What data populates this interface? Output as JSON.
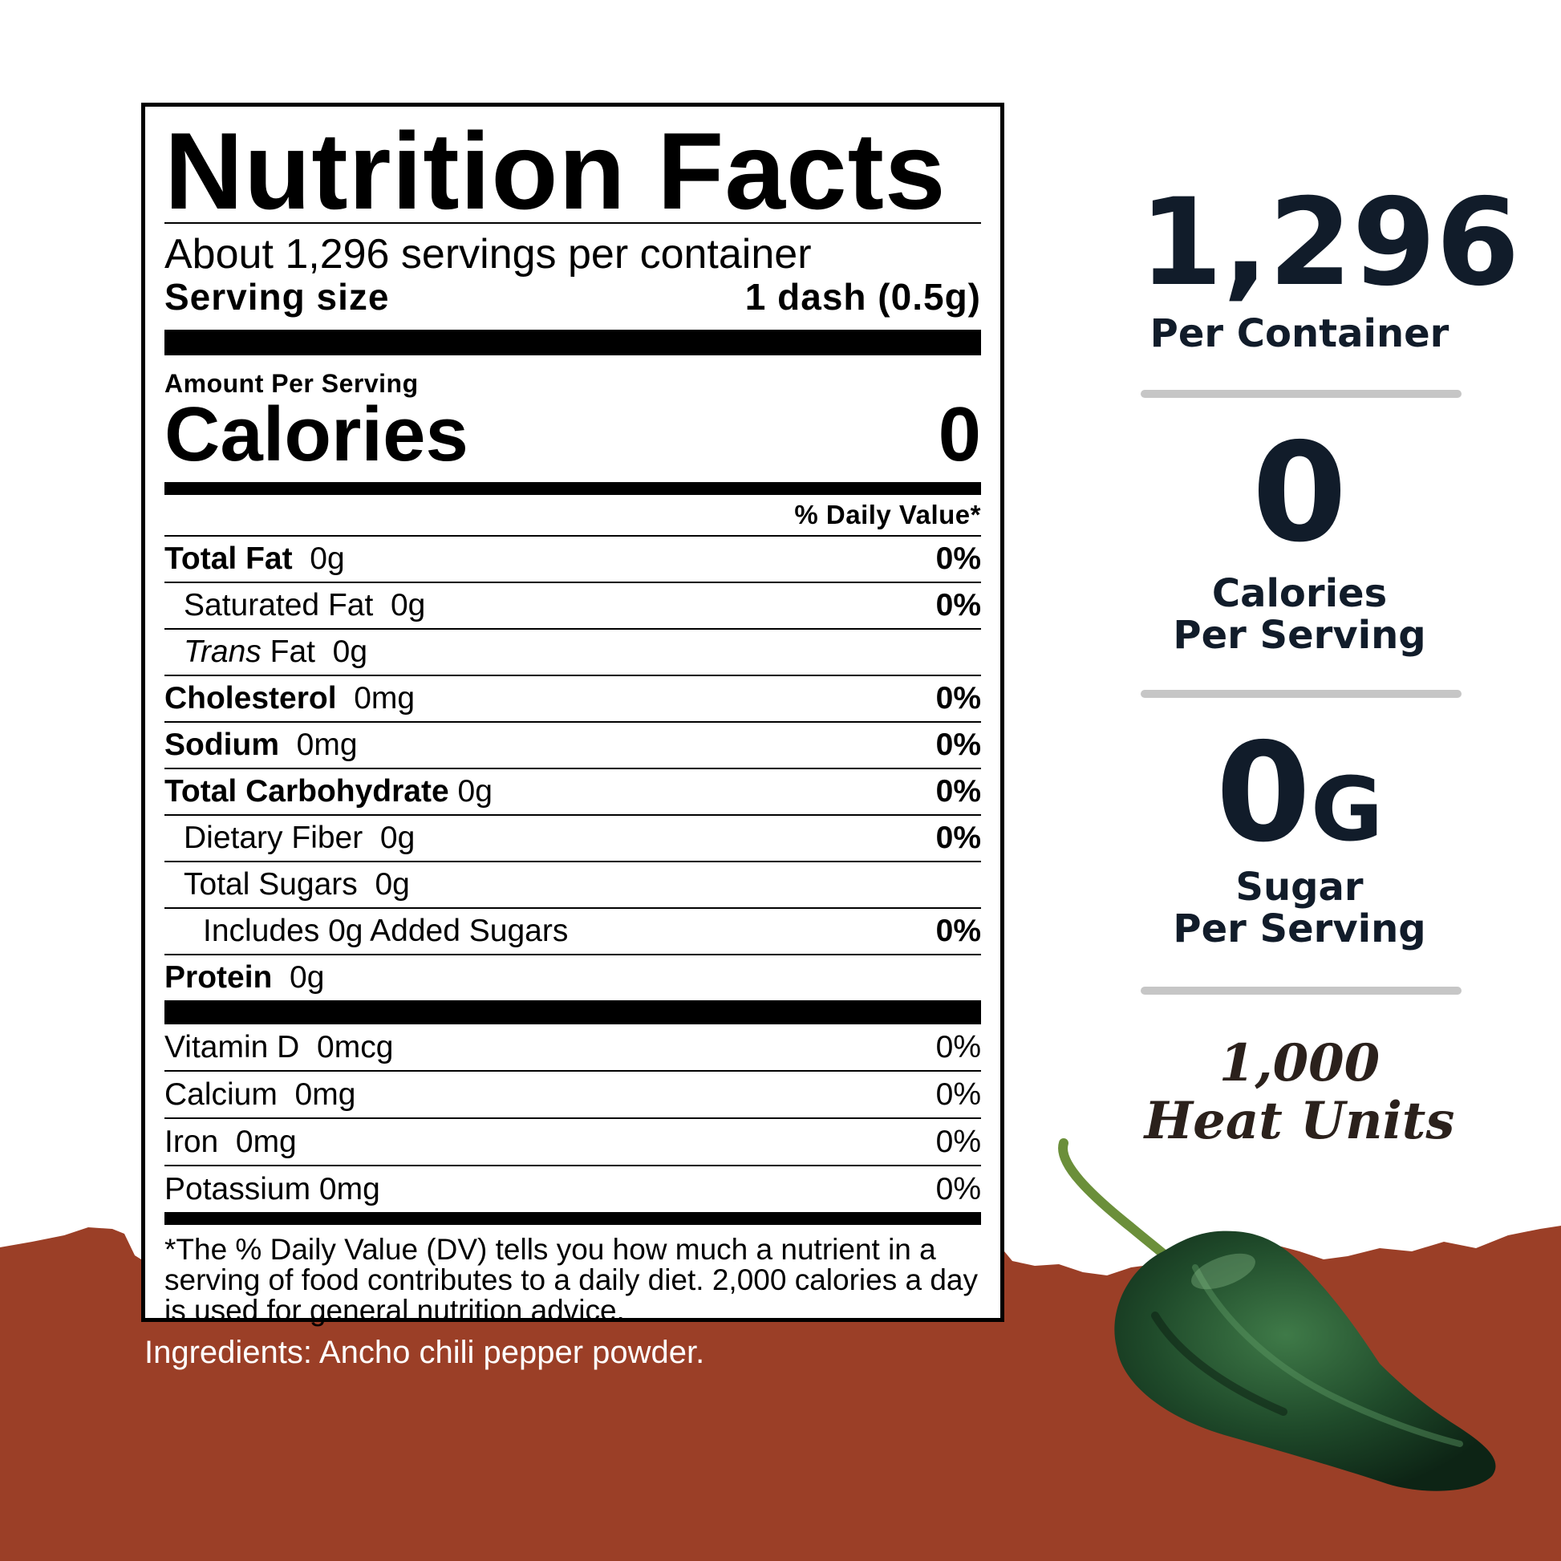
{
  "label": {
    "title": "Nutrition Facts",
    "servings_per_container": "About 1,296 servings per container",
    "serving_size_label": "Serving size",
    "serving_size_value": "1 dash (0.5g)",
    "amount_per_serving": "Amount Per Serving",
    "calories_label": "Calories",
    "calories_value": "0",
    "daily_value_header": "% Daily Value*",
    "nutrients": [
      {
        "name": "Total Fat",
        "amount": "0g",
        "dv": "0%"
      },
      {
        "name": "Saturated Fat",
        "amount": "0g",
        "dv": "0%"
      },
      {
        "name_italic": "Trans",
        "name": "Fat",
        "amount": "0g",
        "dv": ""
      },
      {
        "name": "Cholesterol",
        "amount": "0mg",
        "dv": "0%"
      },
      {
        "name": "Sodium",
        "amount": "0mg",
        "dv": "0%"
      },
      {
        "name": "Total Carbohydrate",
        "amount": "0g",
        "dv": "0%"
      },
      {
        "name": "Dietary Fiber",
        "amount": "0g",
        "dv": "0%"
      },
      {
        "name": "Total Sugars",
        "amount": "0g",
        "dv": ""
      },
      {
        "name": "Includes 0g Added Sugars",
        "amount": "",
        "dv": "0%"
      },
      {
        "name": "Protein",
        "amount": "0g",
        "dv": ""
      }
    ],
    "vitamins": [
      {
        "name": "Vitamin D",
        "amount": "0mcg",
        "dv": "0%"
      },
      {
        "name": "Calcium",
        "amount": "0mg",
        "dv": "0%"
      },
      {
        "name": "Iron",
        "amount": "0mg",
        "dv": "0%"
      },
      {
        "name": "Potassium",
        "amount": "0mg",
        "dv": "0%"
      }
    ],
    "footnote": "*The % Daily Value (DV) tells you how much a nutrient in a serving of food contributes to a daily diet. 2,000 calories a day is used for general nutrition advice."
  },
  "ingredients": "Ingredients: Ancho chili pepper powder.",
  "stats": {
    "servings_number": "1,296",
    "servings_label": "Per Container",
    "calories_number": "0",
    "calories_label_1": "Calories",
    "calories_label_2": "Per Serving",
    "sugar_number": "0",
    "sugar_unit": "G",
    "sugar_label_1": "Sugar",
    "sugar_label_2": "Per Serving"
  },
  "heat": {
    "line1": "1,000",
    "line2": "Heat Units"
  },
  "colors": {
    "terrain": "#9b3f27",
    "stat_text": "#111c2a",
    "divider": "#c6c6c6",
    "pepper": "#1f4a2a"
  },
  "icons": {
    "pepper": "poblano-pepper-icon"
  }
}
